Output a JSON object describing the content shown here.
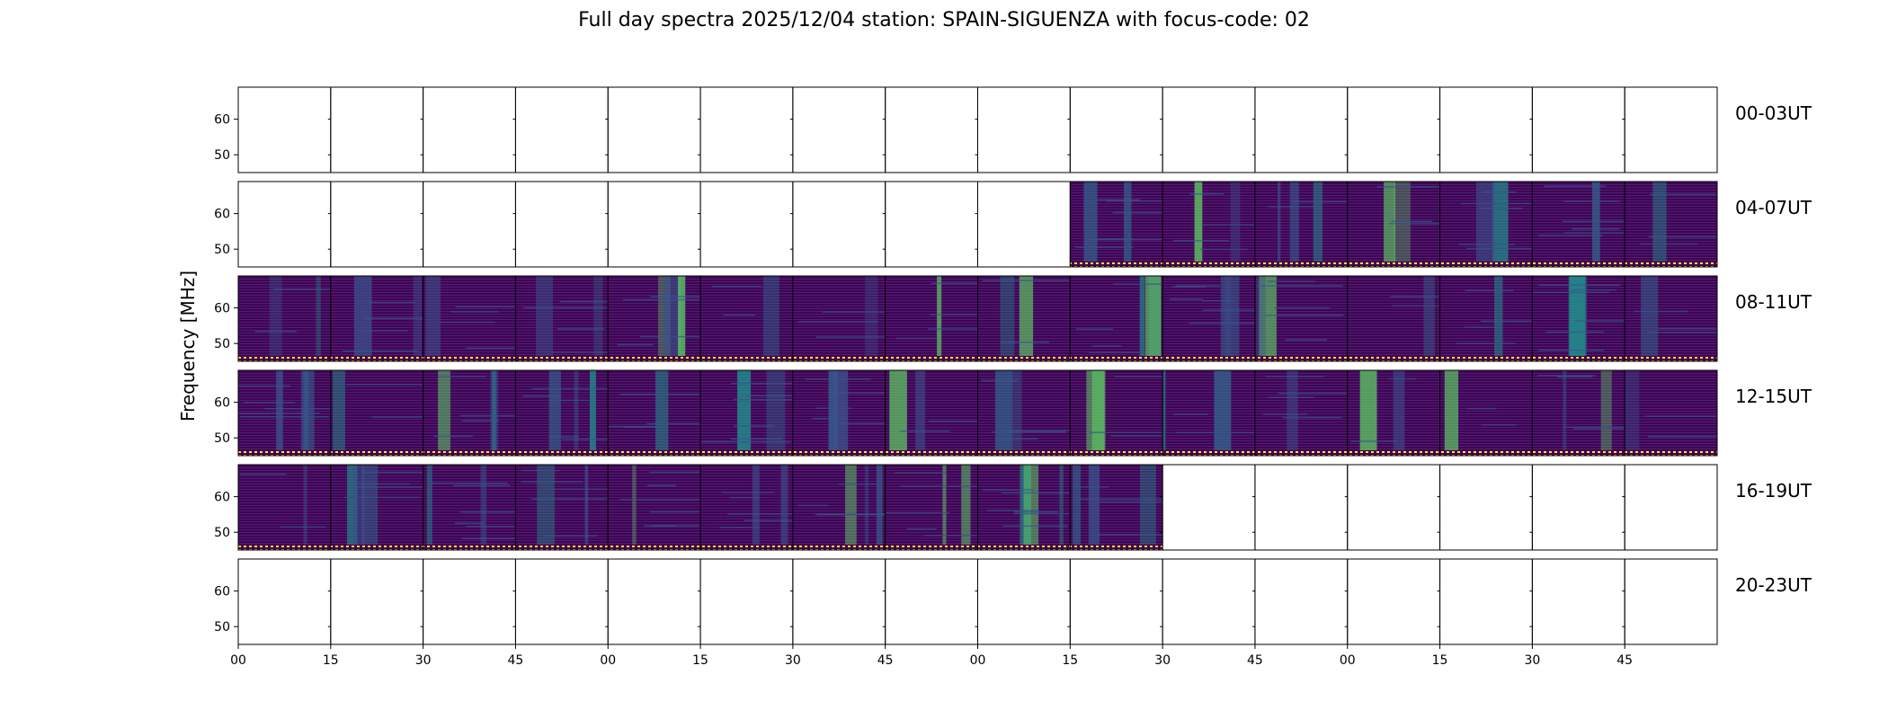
{
  "title": "Full day spectra 2025/12/04 station: SPAIN-SIGUENZA with focus-code: 02",
  "chart_data": {
    "type": "heatmap",
    "ylabel": "Frequency [MHz]",
    "yticks": [
      "50",
      "60"
    ],
    "yrange_mhz": [
      45,
      69
    ],
    "xticks": [
      "00",
      "15",
      "30",
      "45",
      "00",
      "15",
      "30",
      "45",
      "00",
      "15",
      "30",
      "45",
      "00",
      "15",
      "30",
      "45"
    ],
    "panels_per_row": 16,
    "panel_minutes": 15,
    "colormap": "viridis",
    "colors": {
      "low": "#440154",
      "mid": "#3b528b",
      "teal": "#21918c",
      "high": "#5ec962",
      "max": "#fde725"
    },
    "rows": [
      {
        "label": "00-03UT",
        "data_panels": []
      },
      {
        "label": "04-07UT",
        "data_panels": [
          10,
          11,
          12,
          13,
          14,
          15,
          16
        ]
      },
      {
        "label": "08-11UT",
        "data_panels": [
          1,
          2,
          3,
          4,
          5,
          6,
          7,
          8,
          9,
          10,
          11,
          12,
          13,
          14,
          15,
          16
        ]
      },
      {
        "label": "12-15UT",
        "data_panels": [
          1,
          2,
          3,
          4,
          5,
          6,
          7,
          8,
          9,
          10,
          11,
          12,
          13,
          14,
          15,
          16
        ]
      },
      {
        "label": "16-19UT",
        "data_panels": [
          1,
          2,
          3,
          4,
          5,
          6,
          7,
          8,
          9,
          10
        ]
      },
      {
        "label": "20-23UT",
        "data_panels": []
      }
    ]
  }
}
